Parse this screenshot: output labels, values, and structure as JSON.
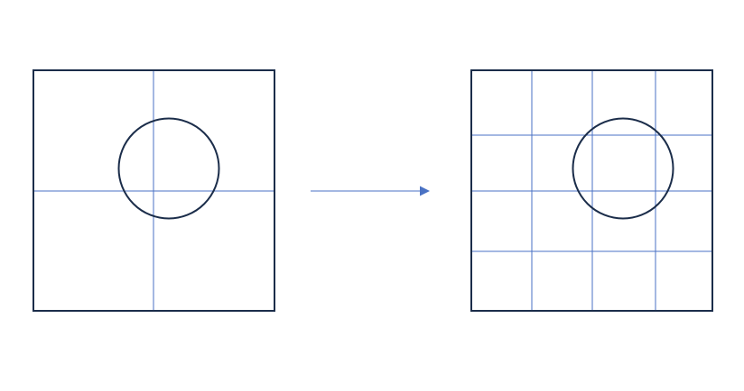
{
  "colors": {
    "background": "#ffffff",
    "outline": "#1b2d4a",
    "grid": "#4a72c4",
    "arrow": "#4a72c4"
  },
  "panels": [
    {
      "name": "coarse-grid",
      "columns": 2,
      "rows": 2,
      "has_circle": true
    },
    {
      "name": "fine-grid",
      "columns": 4,
      "rows": 4,
      "has_circle": true
    }
  ],
  "arrow": {
    "direction": "right"
  }
}
